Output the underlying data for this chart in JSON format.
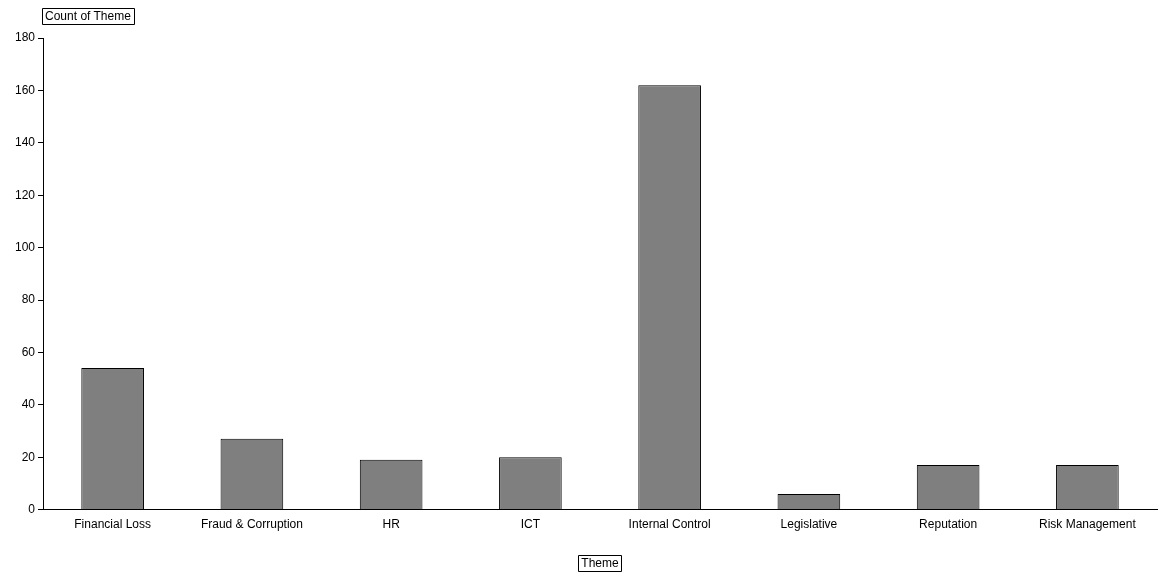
{
  "chart_data": {
    "type": "bar",
    "xlabel": "Theme",
    "ylabel": "Count of Theme",
    "categories": [
      "Financial Loss",
      "Fraud & Corruption",
      "HR",
      "ICT",
      "Internal Control",
      "Legislative",
      "Reputation",
      "Risk Management"
    ],
    "values": [
      54,
      27,
      19,
      20,
      162,
      6,
      17,
      17
    ],
    "color": "#7f7f7f",
    "ylim": [
      0,
      180
    ],
    "yticks": [
      0,
      20,
      40,
      60,
      80,
      100,
      120,
      140,
      160,
      180
    ],
    "grid": false,
    "legend": false
  }
}
